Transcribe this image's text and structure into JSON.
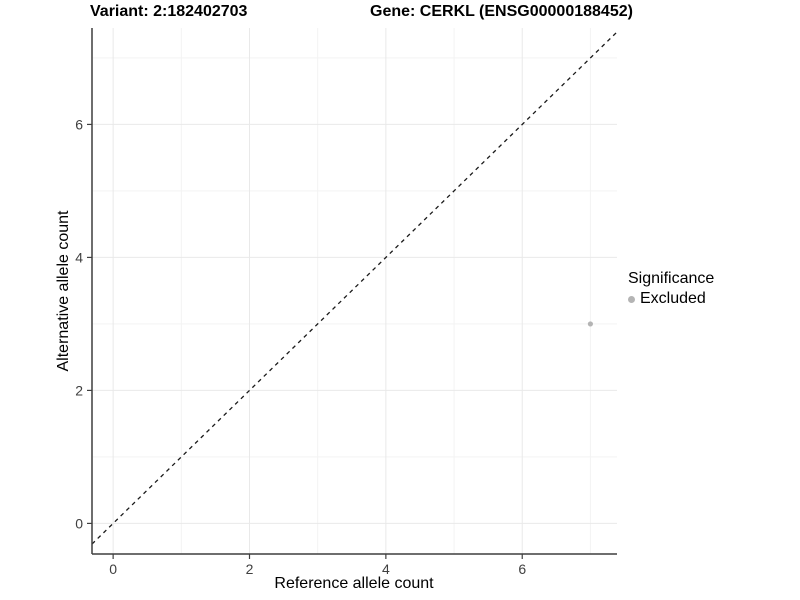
{
  "chart_data": {
    "type": "scatter",
    "title_left": "Variant: 2:182402703",
    "title_right": "Gene: CERKL (ENSG00000188452)",
    "xlabel": "Reference allele count",
    "ylabel": "Alternative allele count",
    "xlim": [
      -0.31,
      7.39
    ],
    "ylim": [
      -0.46,
      7.45
    ],
    "x_major_ticks": [
      0,
      2,
      4,
      6
    ],
    "y_major_ticks": [
      0,
      2,
      4,
      6
    ],
    "x_minor_gridlines": [
      1,
      3,
      5,
      7
    ],
    "y_minor_gridlines": [
      1,
      3,
      5,
      7
    ],
    "grid": true,
    "reference_line": {
      "slope": 1,
      "intercept": 0,
      "style": "dashed"
    },
    "series": [
      {
        "name": "Excluded",
        "color": "#b4b4b4",
        "points": [
          {
            "x": 7,
            "y": 3
          }
        ]
      }
    ],
    "legend": {
      "title": "Significance",
      "position": "right",
      "entries": [
        {
          "label": "Excluded",
          "color": "#b4b4b4"
        }
      ]
    },
    "style": {
      "axis_color": "#3f3f3f",
      "tick_label_color": "#404040",
      "major_grid_color": "#e9e9e9",
      "minor_grid_color": "#f3f3f3",
      "reference_line_color": "#1a1a1a",
      "background": "#ffffff"
    }
  }
}
